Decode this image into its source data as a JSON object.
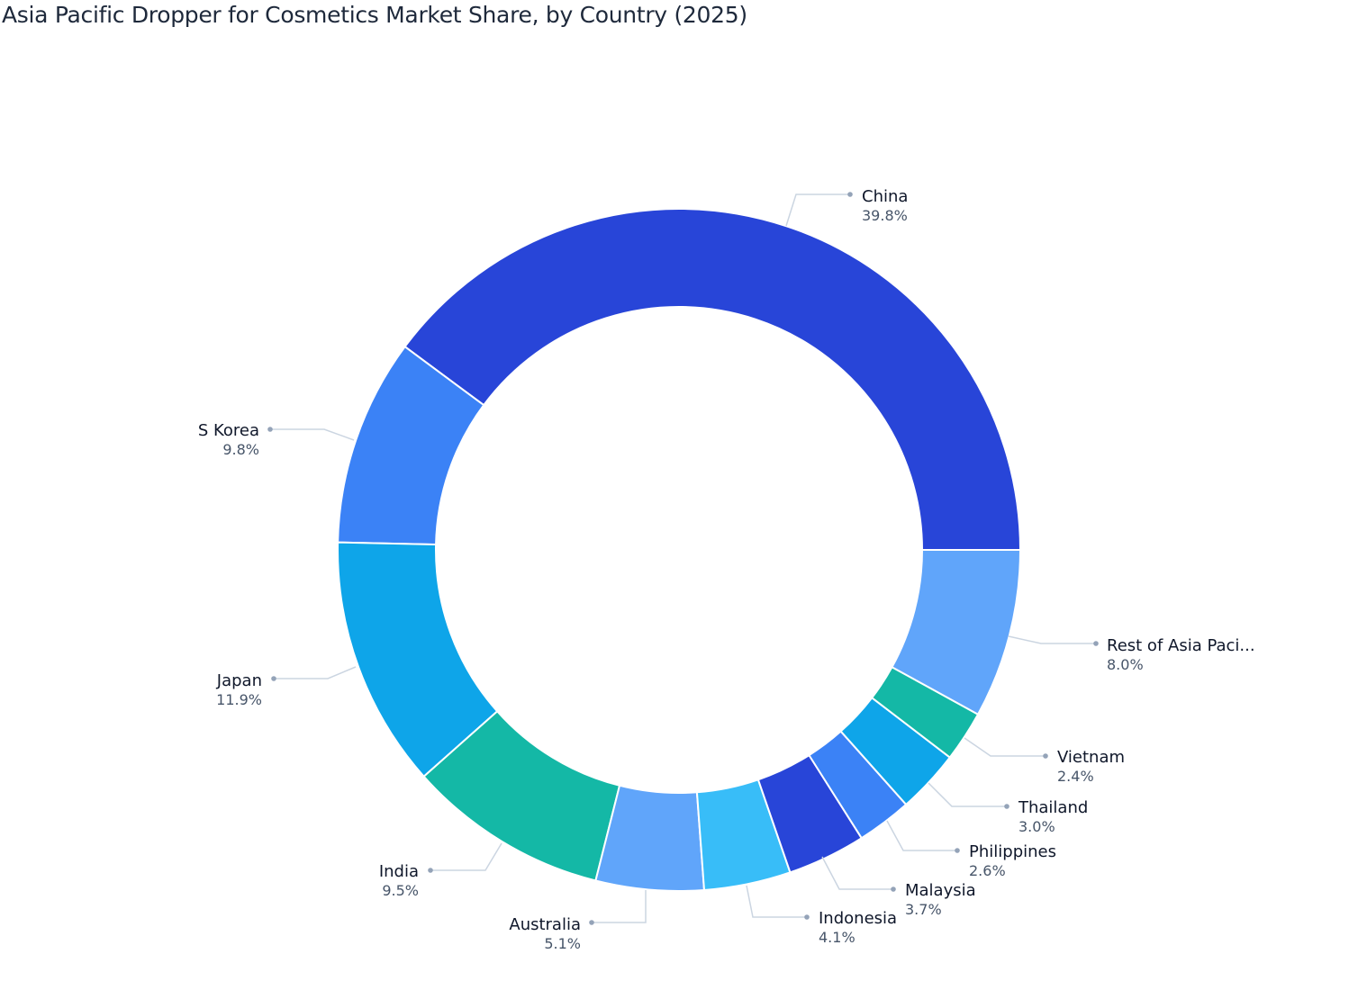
{
  "chart_data": {
    "type": "pie",
    "variant": "donut",
    "title": "Asia Pacific Dropper for Cosmetics Market Share, by Country (2025)",
    "unit": "%",
    "direction": "counterclockwise from 3 o'clock",
    "slices": [
      {
        "label": "China",
        "value": 39.8,
        "display": "39.8%",
        "color": "#2845d8"
      },
      {
        "label": "S Korea",
        "value": 9.8,
        "display": "9.8%",
        "color": "#3b82f6"
      },
      {
        "label": "Japan",
        "value": 11.9,
        "display": "11.9%",
        "color": "#0ea5e9"
      },
      {
        "label": "India",
        "value": 9.5,
        "display": "9.5%",
        "color": "#14b8a6"
      },
      {
        "label": "Australia",
        "value": 5.1,
        "display": "5.1%",
        "color": "#60a5fa"
      },
      {
        "label": "Indonesia",
        "value": 4.1,
        "display": "4.1%",
        "color": "#38bdf8"
      },
      {
        "label": "Malaysia",
        "value": 3.7,
        "display": "3.7%",
        "color": "#2845d8"
      },
      {
        "label": "Philippines",
        "value": 2.6,
        "display": "2.6%",
        "color": "#3b82f6"
      },
      {
        "label": "Thailand",
        "value": 3.0,
        "display": "3.0%",
        "color": "#0ea5e9"
      },
      {
        "label": "Vietnam",
        "value": 2.4,
        "display": "2.4%",
        "color": "#14b8a6"
      },
      {
        "label": "Rest of Asia Paci...",
        "value": 8.0,
        "display": "8.0%",
        "color": "#60a5fa"
      }
    ]
  }
}
